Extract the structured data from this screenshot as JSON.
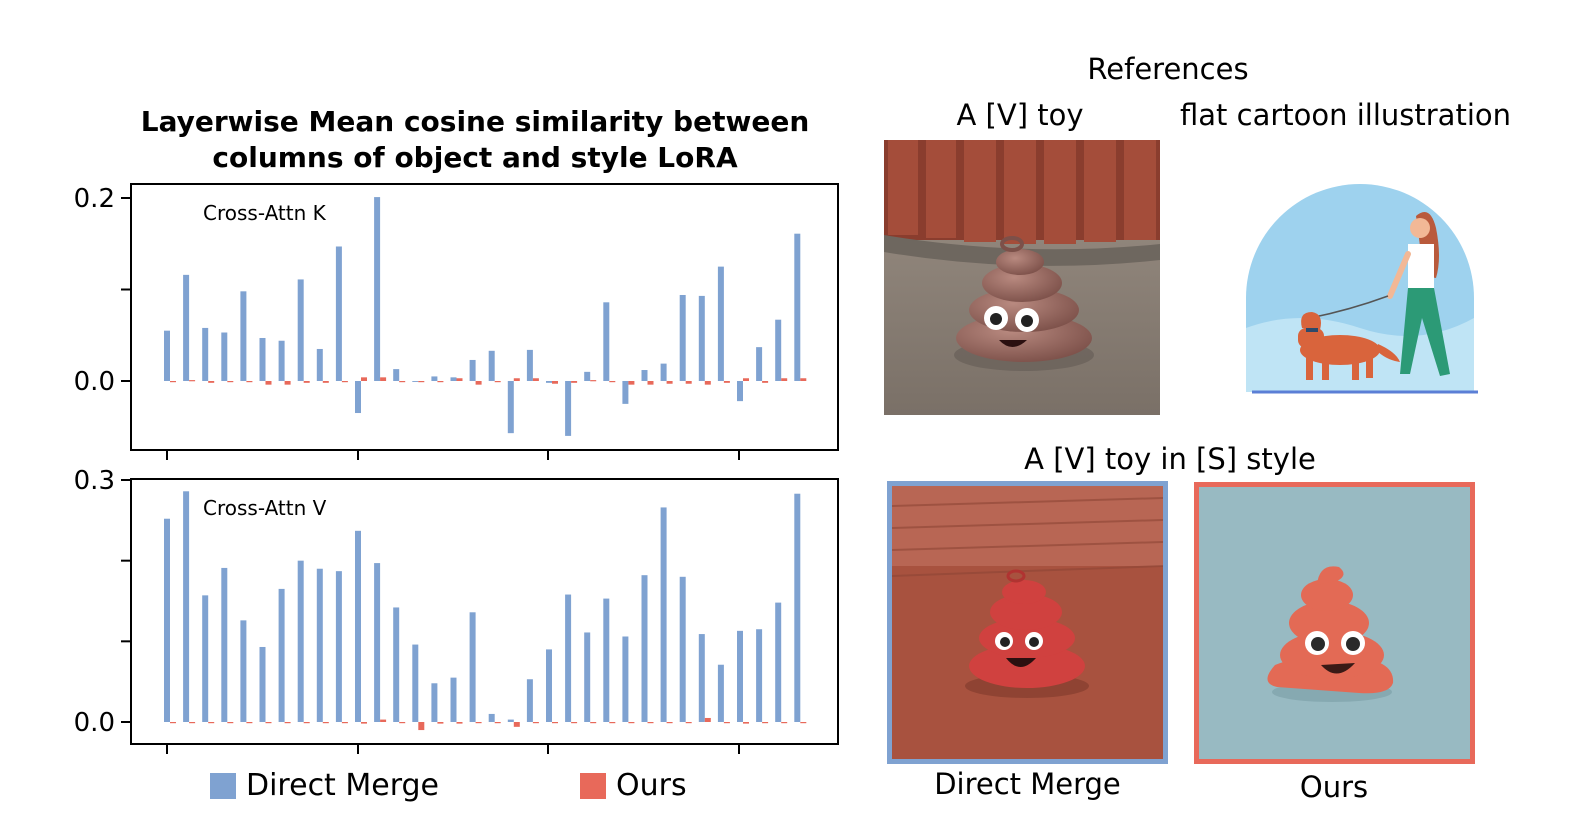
{
  "chart_title_line1": "Layerwise Mean cosine similarity between",
  "chart_title_line2": "columns of object and style LoRA",
  "chart_data": [
    {
      "type": "bar",
      "title": "Cross-Attn K",
      "ytick_labels": [
        "0.2",
        "0.0"
      ],
      "ylim": [
        -0.07,
        0.205
      ],
      "series": [
        {
          "name": "Direct Merge",
          "color": "#7fa2d1",
          "values": [
            0.055,
            0.116,
            0.058,
            0.053,
            0.098,
            0.047,
            0.044,
            0.111,
            0.035,
            0.147,
            -0.035,
            0.201,
            0.013,
            -0.001,
            0.005,
            0.004,
            0.023,
            0.033,
            -0.057,
            0.034,
            -0.002,
            -0.06,
            0.01,
            0.086,
            -0.025,
            0.012,
            0.019,
            0.094,
            0.093,
            0.125,
            -0.022,
            0.037,
            0.067,
            0.161
          ]
        },
        {
          "name": "Ours",
          "color": "#e8695a",
          "values": [
            -0.001,
            0.001,
            -0.002,
            0.0,
            0.0,
            -0.004,
            -0.004,
            -0.002,
            -0.002,
            -0.001,
            0.004,
            0.004,
            0.0,
            -0.001,
            -0.001,
            0.003,
            -0.004,
            -0.001,
            0.003,
            0.003,
            -0.003,
            -0.002,
            0.001,
            0.0,
            -0.004,
            -0.004,
            -0.003,
            -0.003,
            -0.004,
            -0.002,
            0.003,
            -0.002,
            0.003,
            0.003
          ]
        }
      ]
    },
    {
      "type": "bar",
      "title": "Cross-Attn V",
      "ytick_labels": [
        "0.3",
        "0.0"
      ],
      "ylim": [
        -0.027,
        0.303
      ],
      "series": [
        {
          "name": "Direct Merge",
          "color": "#7fa2d1",
          "values": [
            0.252,
            0.286,
            0.157,
            0.191,
            0.126,
            0.093,
            0.165,
            0.2,
            0.19,
            0.187,
            0.237,
            0.197,
            0.142,
            0.096,
            0.048,
            0.055,
            0.136,
            0.01,
            0.003,
            0.053,
            0.09,
            0.158,
            0.111,
            0.153,
            0.106,
            0.182,
            0.266,
            0.18,
            0.109,
            0.071,
            0.113,
            0.115,
            0.148,
            0.283
          ]
        },
        {
          "name": "Ours",
          "color": "#e8695a",
          "values": [
            -0.001,
            -0.001,
            -0.001,
            -0.001,
            0.0,
            0.0,
            0.0,
            -0.001,
            0.0,
            0.0,
            -0.002,
            0.003,
            -0.001,
            -0.01,
            -0.002,
            -0.002,
            0.0,
            -0.001,
            -0.006,
            -0.001,
            -0.001,
            -0.001,
            -0.001,
            -0.001,
            -0.001,
            -0.001,
            -0.001,
            -0.001,
            0.005,
            0.0,
            -0.002,
            -0.001,
            0.0,
            0.0
          ]
        }
      ]
    }
  ],
  "legend": [
    {
      "label": "Direct Merge",
      "color": "#7fa2d1"
    },
    {
      "label": "Ours",
      "color": "#e8695a"
    }
  ],
  "references_heading": "References",
  "ref_toy_caption": "A [V] toy",
  "ref_style_caption": "flat cartoon illustration",
  "combined_heading": "A [V] toy in [S] style",
  "result_direct_caption": "Direct Merge",
  "result_ours_caption": "Ours",
  "colors": {
    "direct_merge": "#7fa2d1",
    "ours": "#e8695a"
  },
  "icons": [
    "poop-emoji-toy-photo",
    "woman-walking-dog-illustration",
    "direct-merge-result-image",
    "ours-result-image"
  ]
}
